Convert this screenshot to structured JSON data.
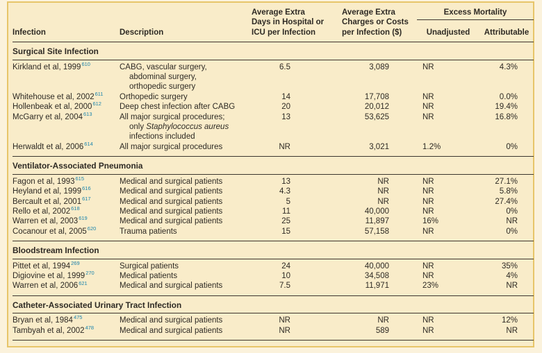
{
  "colors": {
    "panel_background": "#F9ECC9",
    "outer_background": "#FBF2DC",
    "frame_border": "#E7C56A",
    "text": "#2E2A24",
    "rule": "#3C362E",
    "reference_superscript": "#1C85AD"
  },
  "table": {
    "columns": {
      "infection": "Infection",
      "description": "Description",
      "days": [
        "Average Extra",
        "Days in Hospital or",
        "ICU per Infection"
      ],
      "charges": [
        "Average Extra",
        "Charges or Costs",
        "per Infection ($)"
      ],
      "excess_mortality": "Excess Mortality",
      "unadjusted": "Unadjusted",
      "attributable": "Attributable"
    },
    "sections": [
      {
        "title": "Surgical Site Infection",
        "rows": [
          {
            "study": "Kirkland et al, 1999",
            "ref": "610",
            "description": [
              "CABG, vascular surgery,",
              "abdominal surgery,",
              "orthopedic surgery"
            ],
            "days": "6.5",
            "charges": "3,089",
            "unadjusted": "NR",
            "attributable": "4.3%"
          },
          {
            "study": "Whitehouse et al, 2002",
            "ref": "611",
            "description": [
              "Orthopedic surgery"
            ],
            "days": "14",
            "charges": "17,708",
            "unadjusted": "NR",
            "attributable": "0.0%"
          },
          {
            "study": "Hollenbeak et al, 2000",
            "ref": "612",
            "description": [
              "Deep chest infection after CABG"
            ],
            "days": "20",
            "charges": "20,012",
            "unadjusted": "NR",
            "attributable": "19.4%"
          },
          {
            "study": "McGarry et al, 2004",
            "ref": "613",
            "description": [
              "All major surgical procedures;",
              {
                "pre": "only ",
                "italic": "Staphylococcus aureus",
                "post": ""
              },
              "infections included"
            ],
            "days": "13",
            "charges": "53,625",
            "unadjusted": "NR",
            "attributable": "16.8%"
          },
          {
            "study": "Herwaldt et al, 2006",
            "ref": "614",
            "description": [
              "All major surgical procedures"
            ],
            "days": "NR",
            "charges": "3,021",
            "unadjusted": "1.2%",
            "attributable": "0%"
          }
        ]
      },
      {
        "title": "Ventilator-Associated Pneumonia",
        "rows": [
          {
            "study": "Fagon et al, 1993",
            "ref": "615",
            "description": [
              "Medical and surgical patients"
            ],
            "days": "13",
            "charges": "NR",
            "unadjusted": "NR",
            "attributable": "27.1%"
          },
          {
            "study": "Heyland et al, 1999",
            "ref": "616",
            "description": [
              "Medical and surgical patients"
            ],
            "days": "4.3",
            "charges": "NR",
            "unadjusted": "NR",
            "attributable": "5.8%"
          },
          {
            "study": "Bercault et al, 2001",
            "ref": "617",
            "description": [
              "Medical and surgical patients"
            ],
            "days": "5",
            "charges": "NR",
            "unadjusted": "NR",
            "attributable": "27.4%"
          },
          {
            "study": "Rello et al, 2002",
            "ref": "618",
            "description": [
              "Medical and surgical patients"
            ],
            "days": "11",
            "charges": "40,000",
            "unadjusted": "NR",
            "attributable": "0%"
          },
          {
            "study": "Warren et al, 2003",
            "ref": "619",
            "description": [
              "Medical and surgical patients"
            ],
            "days": "25",
            "charges": "11,897",
            "unadjusted": "16%",
            "attributable": "NR"
          },
          {
            "study": "Cocanour et al, 2005",
            "ref": "620",
            "description": [
              "Trauma patients"
            ],
            "days": "15",
            "charges": "57,158",
            "unadjusted": "NR",
            "attributable": "0%"
          }
        ]
      },
      {
        "title": "Bloodstream Infection",
        "rows": [
          {
            "study": "Pittet et al, 1994",
            "ref": "269",
            "description": [
              "Surgical patients"
            ],
            "days": "24",
            "charges": "40,000",
            "unadjusted": "NR",
            "attributable": "35%"
          },
          {
            "study": "Digiovine et al, 1999",
            "ref": "270",
            "description": [
              "Medical patients"
            ],
            "days": "10",
            "charges": "34,508",
            "unadjusted": "NR",
            "attributable": "4%"
          },
          {
            "study": "Warren et al, 2006",
            "ref": "621",
            "description": [
              "Medical and surgical patients"
            ],
            "days": "7.5",
            "charges": "11,971",
            "unadjusted": "23%",
            "attributable": "NR"
          }
        ]
      },
      {
        "title": "Catheter-Associated Urinary Tract Infection",
        "rows": [
          {
            "study": "Bryan et al, 1984",
            "ref": "475",
            "description": [
              "Medical and surgical patients"
            ],
            "days": "NR",
            "charges": "NR",
            "unadjusted": "NR",
            "attributable": "12%"
          },
          {
            "study": "Tambyah et al, 2002",
            "ref": "478",
            "description": [
              "Medical and surgical patients"
            ],
            "days": "NR",
            "charges": "589",
            "unadjusted": "NR",
            "attributable": "NR"
          }
        ]
      }
    ]
  }
}
